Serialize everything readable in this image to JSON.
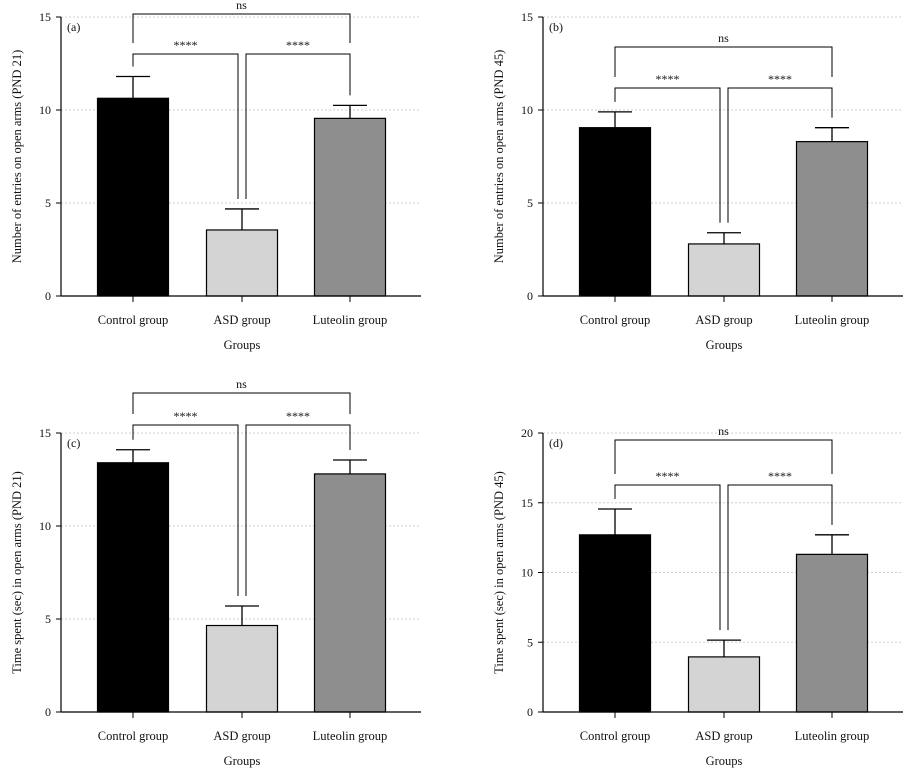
{
  "chart_data": [
    {
      "type": "bar",
      "panel_label": "(a)",
      "xlabel": "Groups",
      "ylabel": "Number of entries on open arms (PND 21)",
      "categories": [
        "Control group",
        "ASD group",
        "Luteolin group"
      ],
      "values": [
        10.63,
        3.55,
        9.55
      ],
      "error_upper": [
        11.8,
        4.68,
        10.25
      ],
      "ylim": [
        0,
        15
      ],
      "yticks": [
        0,
        5,
        10,
        15
      ],
      "grid": "horizontal dotted",
      "colors": [
        "#000000",
        "#d4d4d4",
        "#8e8e8e"
      ],
      "comparisons": [
        {
          "from": 0,
          "to": 2,
          "label": "ns"
        },
        {
          "from": 0,
          "to": 1,
          "label": "****"
        },
        {
          "from": 1,
          "to": 2,
          "label": "****"
        }
      ]
    },
    {
      "type": "bar",
      "panel_label": "(b)",
      "xlabel": "Groups",
      "ylabel": "Number of entries on open arms (PND 45)",
      "categories": [
        "Control group",
        "ASD group",
        "Luteolin group"
      ],
      "values": [
        9.05,
        2.8,
        8.3
      ],
      "error_upper": [
        9.9,
        3.4,
        9.05
      ],
      "ylim": [
        0,
        15
      ],
      "yticks": [
        0,
        5,
        10,
        15
      ],
      "grid": "horizontal dotted",
      "colors": [
        "#000000",
        "#d4d4d4",
        "#8e8e8e"
      ],
      "comparisons": [
        {
          "from": 0,
          "to": 2,
          "label": "ns"
        },
        {
          "from": 0,
          "to": 1,
          "label": "****"
        },
        {
          "from": 1,
          "to": 2,
          "label": "****"
        }
      ]
    },
    {
      "type": "bar",
      "panel_label": "(c)",
      "xlabel": "Groups",
      "ylabel": "Time spent (sec) in open arms (PND 21)",
      "categories": [
        "Control group",
        "ASD group",
        "Luteolin group"
      ],
      "values": [
        13.4,
        4.65,
        12.8
      ],
      "error_upper": [
        14.1,
        5.7,
        13.55
      ],
      "ylim": [
        0,
        15
      ],
      "yticks": [
        0,
        5,
        10,
        15
      ],
      "grid": "horizontal dotted",
      "colors": [
        "#000000",
        "#d4d4d4",
        "#8e8e8e"
      ],
      "comparisons": [
        {
          "from": 0,
          "to": 2,
          "label": "ns"
        },
        {
          "from": 0,
          "to": 1,
          "label": "****"
        },
        {
          "from": 1,
          "to": 2,
          "label": "****"
        }
      ]
    },
    {
      "type": "bar",
      "panel_label": "(d)",
      "xlabel": "Groups",
      "ylabel": "Time spent (sec) in open arms (PND 45)",
      "categories": [
        "Control group",
        "ASD group",
        "Luteolin group"
      ],
      "values": [
        12.7,
        3.95,
        11.3
      ],
      "error_upper": [
        14.55,
        5.15,
        12.7
      ],
      "ylim": [
        0,
        20
      ],
      "yticks": [
        0,
        5,
        10,
        15,
        20
      ],
      "grid": "horizontal dotted",
      "colors": [
        "#000000",
        "#d4d4d4",
        "#8e8e8e"
      ],
      "comparisons": [
        {
          "from": 0,
          "to": 2,
          "label": "ns"
        },
        {
          "from": 0,
          "to": 1,
          "label": "****"
        },
        {
          "from": 1,
          "to": 2,
          "label": "****"
        }
      ]
    }
  ]
}
